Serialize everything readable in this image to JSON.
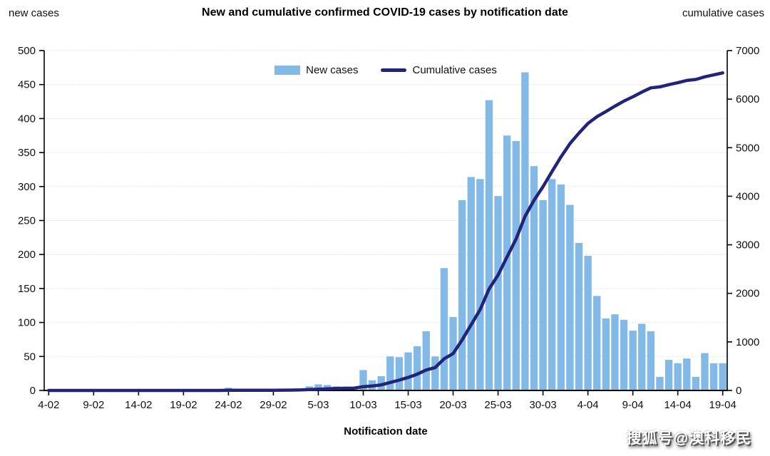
{
  "header": {
    "left_axis_title": "new cases",
    "title": "New and cumulative confirmed COVID-19 cases by notification date",
    "right_axis_title": "cumulative cases"
  },
  "legend": [
    {
      "label": "New cases",
      "type": "bar",
      "color": "#82B9E6"
    },
    {
      "label": "Cumulative cases",
      "type": "line",
      "color": "#212478"
    }
  ],
  "xlabel": "Notification date",
  "watermark": "搜狐号@澳科移民",
  "colors": {
    "bar_fill": "#82B9E6",
    "line_stroke": "#212478",
    "grid": "#D9D9D9",
    "axis": "#000000"
  },
  "chart_data": {
    "type": "bar",
    "title": "New and cumulative confirmed COVID-19 cases by notification date",
    "xlabel": "Notification date",
    "ylabel_left": "new cases",
    "ylabel_right": "cumulative cases",
    "grid": true,
    "legend_position": "top-center-inside",
    "x_tick_labels": [
      "4-02",
      "9-02",
      "14-02",
      "19-02",
      "24-02",
      "29-02",
      "5-03",
      "10-03",
      "15-03",
      "20-03",
      "25-03",
      "30-03",
      "4-04",
      "9-04",
      "14-04",
      "19-04"
    ],
    "x_tick_positions": [
      0,
      5,
      10,
      15,
      20,
      25,
      30,
      35,
      40,
      45,
      50,
      55,
      60,
      65,
      70,
      75
    ],
    "left_axis": {
      "min": 0,
      "max": 500,
      "step": 50
    },
    "right_axis": {
      "min": 0,
      "max": 7000,
      "step": 1000
    },
    "grid_color": "#D9D9D9",
    "series": [
      {
        "name": "New cases",
        "type": "bar",
        "axis": "left",
        "color": "#82B9E6",
        "values": [
          0,
          0,
          0,
          0,
          0,
          0,
          0,
          0,
          0,
          0,
          0,
          0,
          0,
          0,
          0,
          0,
          0,
          0,
          0,
          0,
          4,
          1,
          0,
          0,
          0,
          0,
          1,
          2,
          3,
          6,
          9,
          8,
          6,
          5,
          3,
          30,
          15,
          21,
          50,
          49,
          56,
          65,
          87,
          50,
          180,
          108,
          280,
          314,
          311,
          427,
          286,
          375,
          367,
          468,
          330,
          280,
          311,
          303,
          273,
          217,
          198,
          139,
          106,
          112,
          104,
          88,
          98,
          87,
          20,
          45,
          40,
          47,
          20,
          55,
          40,
          40
        ]
      },
      {
        "name": "Cumulative cases",
        "type": "line",
        "axis": "right",
        "color": "#212478",
        "values": [
          0,
          0,
          0,
          0,
          0,
          0,
          0,
          0,
          0,
          0,
          0,
          0,
          0,
          0,
          0,
          0,
          0,
          0,
          0,
          0,
          4,
          5,
          5,
          5,
          5,
          5,
          6,
          8,
          11,
          17,
          26,
          34,
          40,
          45,
          48,
          78,
          93,
          114,
          164,
          213,
          269,
          334,
          421,
          471,
          651,
          759,
          1039,
          1353,
          1664,
          2091,
          2377,
          2752,
          3119,
          3587,
          3917,
          4197,
          4508,
          4811,
          5084,
          5301,
          5499,
          5638,
          5744,
          5856,
          5960,
          6048,
          6146,
          6233,
          6253,
          6298,
          6338,
          6385,
          6405,
          6460,
          6500,
          6540
        ]
      }
    ]
  }
}
